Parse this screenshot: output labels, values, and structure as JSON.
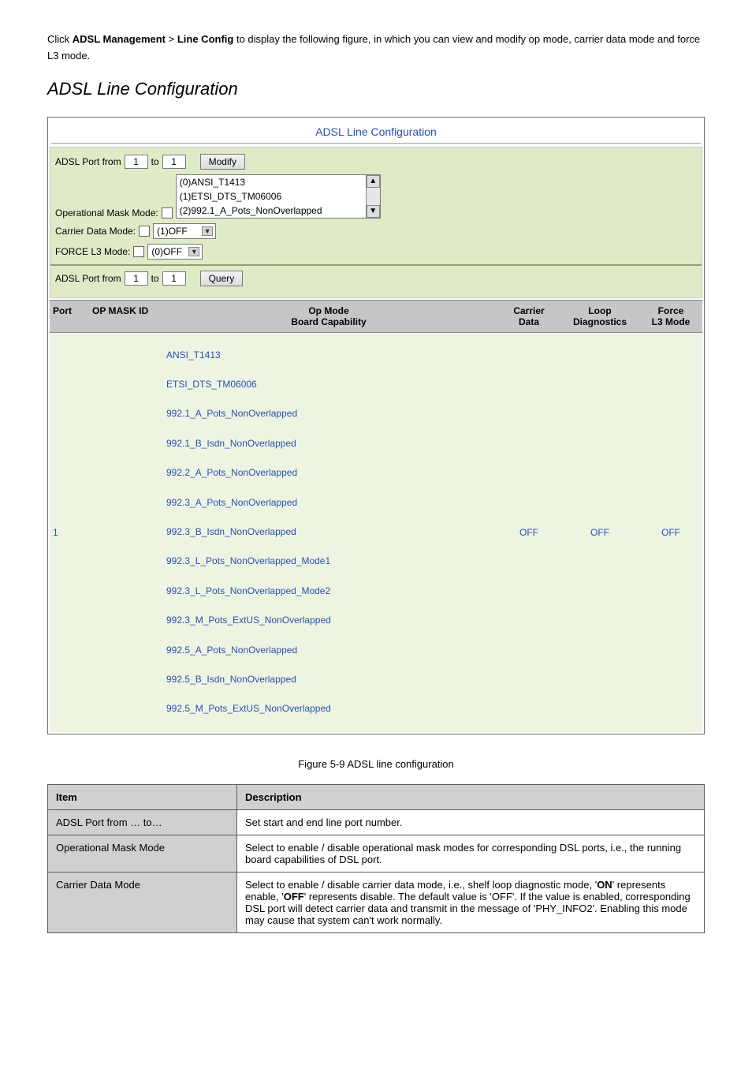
{
  "intro_prefix": "Click ",
  "intro_strong1": "ADSL Management",
  "intro_mid": " > ",
  "intro_strong2": "Line Config",
  "intro_suffix": " to display the following figure, in which you can view and modify op mode, carrier data mode and force L3 mode.",
  "chapter": "ADSL Line Configuration",
  "fig": {
    "title": "ADSL Line Configuration",
    "port_from_label": "ADSL Port from",
    "port_from": "1",
    "to_label": "to",
    "port_to": "1",
    "modify_btn": "Modify",
    "op_mode_options": [
      "(0)ANSI_T1413",
      "(1)ETSI_DTS_TM06006",
      "(2)992.1_A_Pots_NonOverlapped"
    ],
    "opmask_label": "Operational Mask Mode:",
    "carrier_label": "Carrier Data Mode:",
    "carrier_value": "(1)OFF",
    "force_label": "FORCE L3 Mode:",
    "force_value": "(0)OFF",
    "query_port_from": "1",
    "query_port_to": "1",
    "query_btn": "Query",
    "head_port": "Port",
    "head_mask": "OP MASK ID",
    "head_op1": "Op Mode",
    "head_op2": "Board Capability",
    "head_carrier": "Carrier\nData",
    "head_loop": "Loop\nDiagnostics",
    "head_force": "Force\nL3 Mode",
    "row": {
      "port": "1",
      "op_list": [
        "ANSI_T1413",
        "ETSI_DTS_TM06006",
        "992.1_A_Pots_NonOverlapped",
        "992.1_B_Isdn_NonOverlapped",
        "992.2_A_Pots_NonOverlapped",
        "992.3_A_Pots_NonOverlapped",
        "992.3_B_Isdn_NonOverlapped",
        "992.3_L_Pots_NonOverlapped_Mode1",
        "992.3_L_Pots_NonOverlapped_Mode2",
        "992.3_M_Pots_ExtUS_NonOverlapped",
        "992.5_A_Pots_NonOverlapped",
        "992.5_B_Isdn_NonOverlapped",
        "992.5_M_Pots_ExtUS_NonOverlapped"
      ],
      "carrier": "OFF",
      "loop": "OFF",
      "force": "OFF"
    }
  },
  "caption": "Figure 5-9 ADSL line configuration",
  "table": {
    "h1": "Item",
    "h2": "Description",
    "r1l": "ADSL Port from … to…",
    "r1d": "Set start and end line port number.",
    "r2l": "Operational Mask Mode",
    "r2d": "Select to enable / disable operational mask modes for corresponding DSL ports, i.e., the running board capabilities of DSL port.",
    "r3l": "Carrier Data Mode",
    "r3d_before": "Select to enable / disable carrier data mode, i.e., shelf loop diagnostic mode, '",
    "r3d_strong": "ON",
    "r3d_mid": "' represents enable, '",
    "r3d_strong2": "OFF",
    "r3d_after": "' represents disable. The default value is 'OFF'. If the value is enabled, corresponding DSL port will detect carrier data and transmit in the message of 'PHY_INFO2'. Enabling this mode may cause that system can't work normally."
  }
}
